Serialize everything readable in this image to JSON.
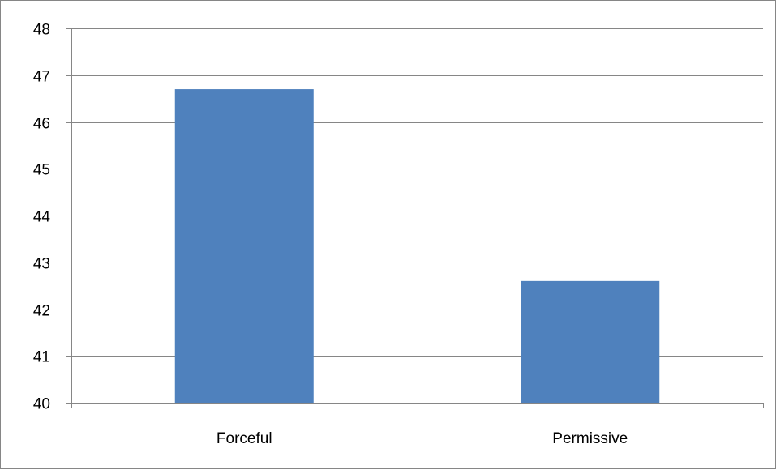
{
  "chart_data": {
    "type": "bar",
    "categories": [
      "Forceful",
      "Permissive"
    ],
    "values": [
      46.7,
      42.6
    ],
    "title": "",
    "xlabel": "",
    "ylabel": "",
    "ylim": [
      40,
      48
    ],
    "yticks": [
      "40",
      "41",
      "42",
      "43",
      "44",
      "45",
      "46",
      "47",
      "48"
    ],
    "grid": true,
    "legend": "none",
    "bar_color": "#4F81BD",
    "grid_color": "#868686"
  }
}
